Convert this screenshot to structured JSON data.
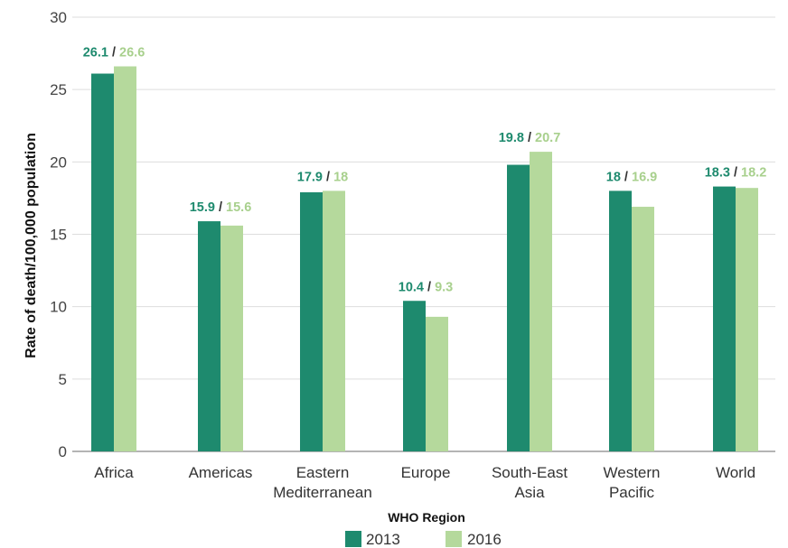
{
  "chart_data": {
    "type": "bar",
    "xlabel": "WHO Region",
    "ylabel": "Rate of death/100,000 population",
    "ylim": [
      0,
      30
    ],
    "yticks": [
      0,
      5,
      10,
      15,
      20,
      25,
      30
    ],
    "grid": true,
    "legend_position": "bottom",
    "categories": [
      [
        "Africa"
      ],
      [
        "Americas"
      ],
      [
        "Eastern",
        "Mediterranean"
      ],
      [
        "Europe"
      ],
      [
        "South-East",
        "Asia"
      ],
      [
        "Western",
        "Pacific"
      ],
      [
        "World"
      ]
    ],
    "series": [
      {
        "name": "2013",
        "color": "#1e8a6e",
        "values": [
          26.1,
          15.9,
          17.9,
          10.4,
          19.8,
          18,
          18.3
        ]
      },
      {
        "name": "2016",
        "color": "#b5d99c",
        "values": [
          26.6,
          15.6,
          18,
          9.3,
          20.7,
          16.9,
          18.2
        ]
      }
    ],
    "data_labels": [
      [
        "26.1",
        "26.6"
      ],
      [
        "15.9",
        "15.6"
      ],
      [
        "17.9",
        "18"
      ],
      [
        "10.4",
        "9.3"
      ],
      [
        "19.8",
        "20.7"
      ],
      [
        "18",
        "16.9"
      ],
      [
        "18.3",
        "18.2"
      ]
    ],
    "label_separator": " / ",
    "label_colors": {
      "first": "#1e8a6e",
      "second": "#a8d08d",
      "separator": "#333333"
    },
    "gridline_color": "#dddddd",
    "axis_color": "#888888"
  }
}
